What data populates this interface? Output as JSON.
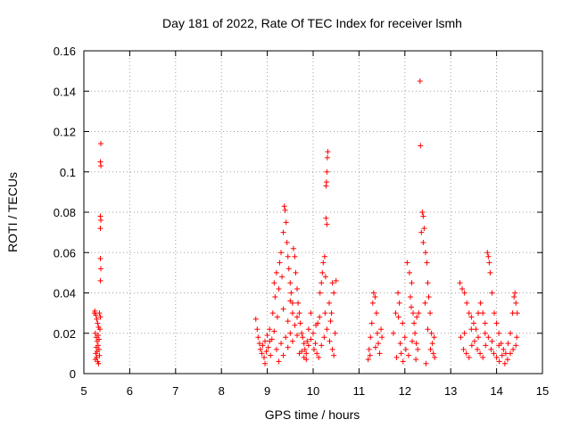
{
  "chart_data": {
    "type": "scatter",
    "title": "Day 181 of 2022, Rate Of TEC Index for receiver lsmh",
    "xlabel": "GPS time / hours",
    "ylabel": "ROTI / TECUs",
    "xlim": [
      5,
      15
    ],
    "ylim": [
      0,
      0.16
    ],
    "xticks": [
      5,
      6,
      7,
      8,
      9,
      10,
      11,
      12,
      13,
      14,
      15
    ],
    "yticks": [
      0,
      0.02,
      0.04,
      0.06,
      0.08,
      0.1,
      0.12,
      0.14,
      0.16
    ],
    "xtick_labels": [
      "5",
      "6",
      "7",
      "8",
      "9",
      "10",
      "11",
      "12",
      "13",
      "14",
      "15"
    ],
    "ytick_labels": [
      "0",
      "0.02",
      "0.04",
      "0.06",
      "0.08",
      "0.1",
      "0.12",
      "0.14",
      "0.16"
    ],
    "grid": true,
    "marker": "+",
    "marker_color": "#ff0000",
    "series": [
      {
        "points": [
          [
            5.24,
            0.031
          ],
          [
            5.26,
            0.029
          ],
          [
            5.28,
            0.027
          ],
          [
            5.3,
            0.025
          ],
          [
            5.32,
            0.023
          ],
          [
            5.34,
            0.03
          ],
          [
            5.25,
            0.02
          ],
          [
            5.27,
            0.018
          ],
          [
            5.29,
            0.016
          ],
          [
            5.31,
            0.014
          ],
          [
            5.33,
            0.012
          ],
          [
            5.35,
            0.022
          ],
          [
            5.26,
            0.01
          ],
          [
            5.28,
            0.008
          ],
          [
            5.3,
            0.006
          ],
          [
            5.32,
            0.005
          ],
          [
            5.34,
            0.009
          ],
          [
            5.27,
            0.013
          ],
          [
            5.29,
            0.011
          ],
          [
            5.31,
            0.019
          ],
          [
            5.33,
            0.017
          ],
          [
            5.25,
            0.007
          ],
          [
            5.36,
            0.028
          ],
          [
            5.23,
            0.03
          ],
          [
            5.37,
            0.114
          ],
          [
            5.36,
            0.105
          ],
          [
            5.37,
            0.103
          ],
          [
            5.36,
            0.078
          ],
          [
            5.37,
            0.076
          ],
          [
            5.36,
            0.072
          ],
          [
            5.36,
            0.057
          ],
          [
            5.37,
            0.052
          ],
          [
            5.36,
            0.046
          ],
          [
            8.75,
            0.027
          ],
          [
            8.78,
            0.022
          ],
          [
            8.8,
            0.018
          ],
          [
            8.83,
            0.015
          ],
          [
            8.85,
            0.012
          ],
          [
            8.88,
            0.01
          ],
          [
            8.9,
            0.014
          ],
          [
            8.93,
            0.008
          ],
          [
            8.95,
            0.016
          ],
          [
            8.98,
            0.011
          ],
          [
            9.0,
            0.019
          ],
          [
            9.02,
            0.013
          ],
          [
            9.05,
            0.022
          ],
          [
            9.07,
            0.009
          ],
          [
            9.1,
            0.017
          ],
          [
            9.12,
            0.03
          ],
          [
            9.15,
            0.045
          ],
          [
            9.17,
            0.038
          ],
          [
            9.2,
            0.05
          ],
          [
            9.22,
            0.028
          ],
          [
            9.25,
            0.042
          ],
          [
            9.27,
            0.055
          ],
          [
            9.3,
            0.06
          ],
          [
            9.32,
            0.048
          ],
          [
            9.35,
            0.07
          ],
          [
            9.37,
            0.083
          ],
          [
            9.39,
            0.081
          ],
          [
            9.41,
            0.075
          ],
          [
            9.43,
            0.065
          ],
          [
            9.45,
            0.058
          ],
          [
            9.47,
            0.052
          ],
          [
            9.5,
            0.045
          ],
          [
            9.52,
            0.04
          ],
          [
            9.55,
            0.035
          ],
          [
            9.57,
            0.062
          ],
          [
            9.6,
            0.058
          ],
          [
            9.62,
            0.05
          ],
          [
            9.65,
            0.042
          ],
          [
            9.67,
            0.035
          ],
          [
            9.7,
            0.03
          ],
          [
            9.72,
            0.025
          ],
          [
            9.75,
            0.02
          ],
          [
            9.77,
            0.018
          ],
          [
            9.8,
            0.015
          ],
          [
            9.82,
            0.012
          ],
          [
            9.85,
            0.01
          ],
          [
            9.87,
            0.016
          ],
          [
            9.9,
            0.022
          ],
          [
            9.2,
            0.012
          ],
          [
            9.3,
            0.015
          ],
          [
            9.4,
            0.018
          ],
          [
            9.5,
            0.02
          ],
          [
            9.6,
            0.024
          ],
          [
            9.7,
            0.01
          ],
          [
            9.8,
            0.008
          ],
          [
            9.9,
            0.014
          ],
          [
            9.25,
            0.006
          ],
          [
            9.35,
            0.009
          ],
          [
            9.45,
            0.013
          ],
          [
            9.55,
            0.016
          ],
          [
            9.65,
            0.019
          ],
          [
            9.75,
            0.011
          ],
          [
            9.85,
            0.007
          ],
          [
            9.95,
            0.017
          ],
          [
            9.15,
            0.021
          ],
          [
            9.05,
            0.016
          ],
          [
            8.95,
            0.005
          ],
          [
            9.45,
            0.026
          ],
          [
            9.55,
            0.03
          ],
          [
            9.65,
            0.028
          ],
          [
            9.35,
            0.032
          ],
          [
            9.5,
            0.036
          ],
          [
            9.95,
            0.03
          ],
          [
            10.0,
            0.02
          ],
          [
            10.05,
            0.015
          ],
          [
            10.1,
            0.025
          ],
          [
            10.15,
            0.04
          ],
          [
            10.18,
            0.045
          ],
          [
            10.2,
            0.05
          ],
          [
            10.22,
            0.055
          ],
          [
            10.25,
            0.058
          ],
          [
            10.27,
            0.048
          ],
          [
            10.3,
            0.1
          ],
          [
            10.28,
            0.093
          ],
          [
            10.31,
            0.107
          ],
          [
            10.32,
            0.11
          ],
          [
            10.29,
            0.095
          ],
          [
            10.28,
            0.077
          ],
          [
            10.3,
            0.074
          ],
          [
            10.35,
            0.035
          ],
          [
            10.4,
            0.03
          ],
          [
            10.42,
            0.045
          ],
          [
            10.45,
            0.04
          ],
          [
            10.5,
            0.046
          ],
          [
            10.02,
            0.012
          ],
          [
            10.08,
            0.01
          ],
          [
            10.12,
            0.008
          ],
          [
            10.18,
            0.014
          ],
          [
            10.24,
            0.018
          ],
          [
            10.3,
            0.022
          ],
          [
            10.36,
            0.016
          ],
          [
            10.42,
            0.012
          ],
          [
            10.48,
            0.02
          ],
          [
            10.38,
            0.026
          ],
          [
            10.26,
            0.03
          ],
          [
            10.14,
            0.028
          ],
          [
            10.06,
            0.024
          ],
          [
            10.45,
            0.009
          ],
          [
            11.2,
            0.007
          ],
          [
            11.22,
            0.012
          ],
          [
            11.25,
            0.018
          ],
          [
            11.28,
            0.025
          ],
          [
            11.3,
            0.035
          ],
          [
            11.32,
            0.04
          ],
          [
            11.35,
            0.038
          ],
          [
            11.38,
            0.03
          ],
          [
            11.4,
            0.02
          ],
          [
            11.42,
            0.015
          ],
          [
            11.45,
            0.01
          ],
          [
            11.48,
            0.022
          ],
          [
            11.5,
            0.018
          ],
          [
            11.24,
            0.009
          ],
          [
            11.36,
            0.013
          ],
          [
            11.75,
            0.02
          ],
          [
            11.8,
            0.03
          ],
          [
            11.85,
            0.04
          ],
          [
            11.88,
            0.035
          ],
          [
            11.9,
            0.015
          ],
          [
            11.92,
            0.01
          ],
          [
            11.95,
            0.025
          ],
          [
            12.0,
            0.018
          ],
          [
            12.02,
            0.012
          ],
          [
            12.05,
            0.055
          ],
          [
            12.1,
            0.05
          ],
          [
            12.12,
            0.038
          ],
          [
            12.15,
            0.045
          ],
          [
            12.18,
            0.03
          ],
          [
            12.2,
            0.025
          ],
          [
            12.22,
            0.02
          ],
          [
            12.25,
            0.015
          ],
          [
            12.28,
            0.012
          ],
          [
            12.3,
            0.03
          ],
          [
            12.33,
            0.145
          ],
          [
            12.34,
            0.113
          ],
          [
            12.38,
            0.08
          ],
          [
            12.4,
            0.078
          ],
          [
            12.42,
            0.072
          ],
          [
            12.45,
            0.06
          ],
          [
            12.48,
            0.055
          ],
          [
            12.5,
            0.045
          ],
          [
            12.52,
            0.038
          ],
          [
            12.55,
            0.03
          ],
          [
            12.58,
            0.02
          ],
          [
            12.6,
            0.015
          ],
          [
            12.62,
            0.01
          ],
          [
            12.65,
            0.008
          ],
          [
            12.36,
            0.07
          ],
          [
            12.4,
            0.065
          ],
          [
            12.44,
            0.035
          ],
          [
            11.82,
            0.008
          ],
          [
            11.96,
            0.006
          ],
          [
            12.08,
            0.009
          ],
          [
            12.24,
            0.007
          ],
          [
            12.46,
            0.005
          ],
          [
            12.56,
            0.012
          ],
          [
            12.64,
            0.018
          ],
          [
            11.86,
            0.028
          ],
          [
            12.14,
            0.033
          ],
          [
            12.26,
            0.028
          ],
          [
            12.5,
            0.022
          ],
          [
            12.16,
            0.016
          ],
          [
            13.2,
            0.045
          ],
          [
            13.25,
            0.042
          ],
          [
            13.3,
            0.04
          ],
          [
            13.35,
            0.035
          ],
          [
            13.4,
            0.03
          ],
          [
            13.45,
            0.028
          ],
          [
            13.5,
            0.025
          ],
          [
            13.55,
            0.022
          ],
          [
            13.6,
            0.03
          ],
          [
            13.65,
            0.035
          ],
          [
            13.7,
            0.03
          ],
          [
            13.75,
            0.025
          ],
          [
            13.8,
            0.06
          ],
          [
            13.82,
            0.058
          ],
          [
            13.84,
            0.055
          ],
          [
            13.86,
            0.05
          ],
          [
            13.9,
            0.04
          ],
          [
            13.95,
            0.03
          ],
          [
            14.0,
            0.025
          ],
          [
            14.05,
            0.02
          ],
          [
            14.1,
            0.015
          ],
          [
            14.15,
            0.012
          ],
          [
            14.2,
            0.01
          ],
          [
            14.25,
            0.015
          ],
          [
            14.3,
            0.02
          ],
          [
            14.35,
            0.03
          ],
          [
            14.38,
            0.038
          ],
          [
            14.4,
            0.04
          ],
          [
            14.42,
            0.035
          ],
          [
            14.45,
            0.03
          ],
          [
            13.22,
            0.018
          ],
          [
            13.28,
            0.012
          ],
          [
            13.34,
            0.01
          ],
          [
            13.4,
            0.008
          ],
          [
            13.46,
            0.014
          ],
          [
            13.52,
            0.016
          ],
          [
            13.58,
            0.012
          ],
          [
            13.64,
            0.01
          ],
          [
            13.7,
            0.008
          ],
          [
            13.76,
            0.014
          ],
          [
            13.82,
            0.018
          ],
          [
            13.88,
            0.012
          ],
          [
            13.94,
            0.01
          ],
          [
            14.0,
            0.008
          ],
          [
            14.06,
            0.006
          ],
          [
            14.12,
            0.009
          ],
          [
            14.18,
            0.005
          ],
          [
            14.24,
            0.007
          ],
          [
            14.3,
            0.01
          ],
          [
            14.36,
            0.012
          ],
          [
            14.42,
            0.014
          ],
          [
            14.44,
            0.018
          ],
          [
            13.3,
            0.02
          ],
          [
            13.45,
            0.022
          ],
          [
            13.6,
            0.018
          ],
          [
            13.75,
            0.02
          ],
          [
            13.9,
            0.016
          ],
          [
            14.05,
            0.014
          ]
        ]
      }
    ]
  }
}
